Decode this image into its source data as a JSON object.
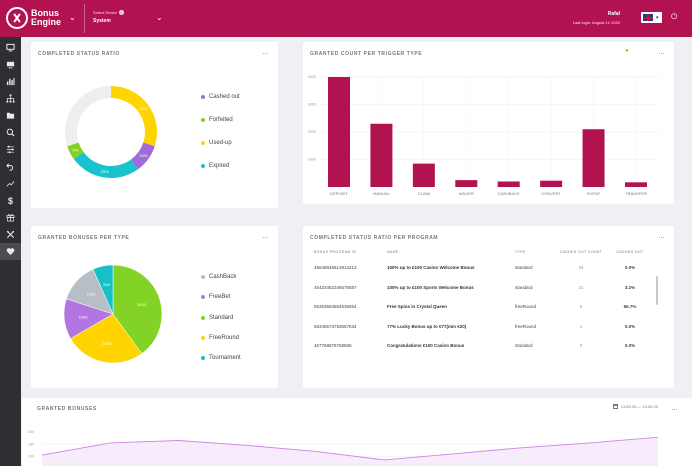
{
  "header": {
    "logo_line1": "Bonus",
    "logo_line2": "Engine",
    "realm_label": "Select Realm",
    "realm_value": "System",
    "user_name": "Rafal",
    "last_login": "Last login: August 12 2020"
  },
  "colors": {
    "brand": "#b2124f",
    "sidebar": "#2d2f33",
    "cashed_out": "#a06bd8",
    "forfeited": "#86cf24",
    "used_up": "#ffd400",
    "expired": "#18c3cd",
    "cashback": "#b8bec6",
    "freebet": "#b376e0",
    "standard": "#83d226",
    "freeround": "#ffd400",
    "tournament": "#17bfc8",
    "bar": "#b2124f",
    "area_line": "#cf84e6",
    "area_fill": "#f6ecfb"
  },
  "sidebar": {
    "icons": [
      "desktop-icon",
      "monitor-icon",
      "bar-chart-icon",
      "hierarchy-icon",
      "folder-icon",
      "search-icon",
      "sliders-icon",
      "undo-icon",
      "trend-icon",
      "dollar-icon",
      "gift-icon",
      "tools-icon",
      "heart-icon"
    ]
  },
  "status_ratio": {
    "title": "COMPLETED STATUS RATIO",
    "more": "...",
    "legend": [
      {
        "label": "Cashed out",
        "color": "#a06bd8"
      },
      {
        "label": "Forfeited",
        "color": "#86cf24"
      },
      {
        "label": "Used-up",
        "color": "#ffd400"
      },
      {
        "label": "Expired",
        "color": "#18c3cd"
      }
    ],
    "slice_labels": [
      "30%",
      "10%",
      "25%",
      "5%"
    ]
  },
  "trigger_count": {
    "title": "GRANTED COUNT PER TRIGGER TYPE",
    "more": "...",
    "y_ticks": [
      "4000",
      "3000",
      "2000",
      "1000"
    ]
  },
  "bonuses_per_type": {
    "title": "GRANTED BONUSES PER TYPE",
    "more": "...",
    "legend": [
      {
        "label": "CashBack",
        "color": "#b8bec6"
      },
      {
        "label": "FreeBet",
        "color": "#b376e0"
      },
      {
        "label": "Standard",
        "color": "#83d226"
      },
      {
        "label": "FreeRound",
        "color": "#ffd400"
      },
      {
        "label": "Tournament",
        "color": "#17bfc8"
      }
    ],
    "slice_labels": [
      "1000",
      "500",
      "1000",
      "2000",
      "3000"
    ]
  },
  "program_table": {
    "title": "COMPLETED STATUS RATIO PER PROGRAM",
    "more": "...",
    "headers": [
      "BONUS PROGRAM ID",
      "NAME",
      "TYPE",
      "CASHED OUT COUNT",
      "CASHED OUT"
    ],
    "rows": [
      [
        "46648848513813213",
        "100% up to £100 Casino Welcome Bonus",
        "standard",
        "34",
        "0.0%"
      ],
      [
        "45423462346576587",
        "100% up to £100 Sports Welcome Bonus",
        "standard",
        "31",
        "3.2%"
      ],
      [
        "65363563554635654",
        "Free Spins in Crystal Queen",
        "freeRound",
        "6",
        "66.7%"
      ],
      [
        "56346573753657634",
        "77% Lucky Bonus up to €77(min €20)",
        "freeRound",
        "1",
        "0.0%"
      ],
      [
        "467768878768568",
        "Congratulations €100 Casino Bonus",
        "standard",
        "0",
        "0.0%"
      ]
    ]
  },
  "granted_bonuses": {
    "title": "GRANTED BONUSES",
    "date_range": "13.05.20 — 13.06.20",
    "more": "...",
    "y_ticks": [
      "200",
      "150",
      "100"
    ]
  },
  "chart_data": [
    {
      "type": "pie",
      "title": "COMPLETED STATUS RATIO",
      "donut": true,
      "categories": [
        "Used-up",
        "Cashed out",
        "Expired",
        "Forfeited",
        "Remaining"
      ],
      "values": [
        30,
        10,
        25,
        5,
        30
      ],
      "labels": [
        "30%",
        "10%",
        "25%",
        "5%",
        ""
      ]
    },
    {
      "type": "bar",
      "title": "GRANTED COUNT PER TRIGGER TYPE",
      "categories": [
        "DEPOSIT",
        "MANUAL",
        "CLAIM",
        "WAGER",
        "CASHBACK",
        "CONVERT",
        "EVENT",
        "TRANSFER"
      ],
      "values": [
        4000,
        2300,
        850,
        250,
        200,
        230,
        2100,
        170
      ],
      "ylim": [
        0,
        4000
      ],
      "ticks": [
        4000,
        3000,
        2000,
        1000
      ]
    },
    {
      "type": "pie",
      "title": "GRANTED BONUSES PER TYPE",
      "categories": [
        "Standard",
        "FreeRound",
        "FreeBet",
        "CashBack",
        "Tournament"
      ],
      "values": [
        3000,
        2000,
        1000,
        1000,
        500
      ],
      "labels": [
        "3000",
        "2000",
        "1000",
        "1000",
        "500"
      ]
    },
    {
      "type": "area",
      "title": "GRANTED BONUSES",
      "values": [
        105,
        155,
        165,
        145,
        120,
        85,
        110,
        135,
        155,
        178
      ],
      "ylim": [
        60,
        200
      ],
      "ticks": [
        200,
        150,
        100
      ]
    }
  ]
}
